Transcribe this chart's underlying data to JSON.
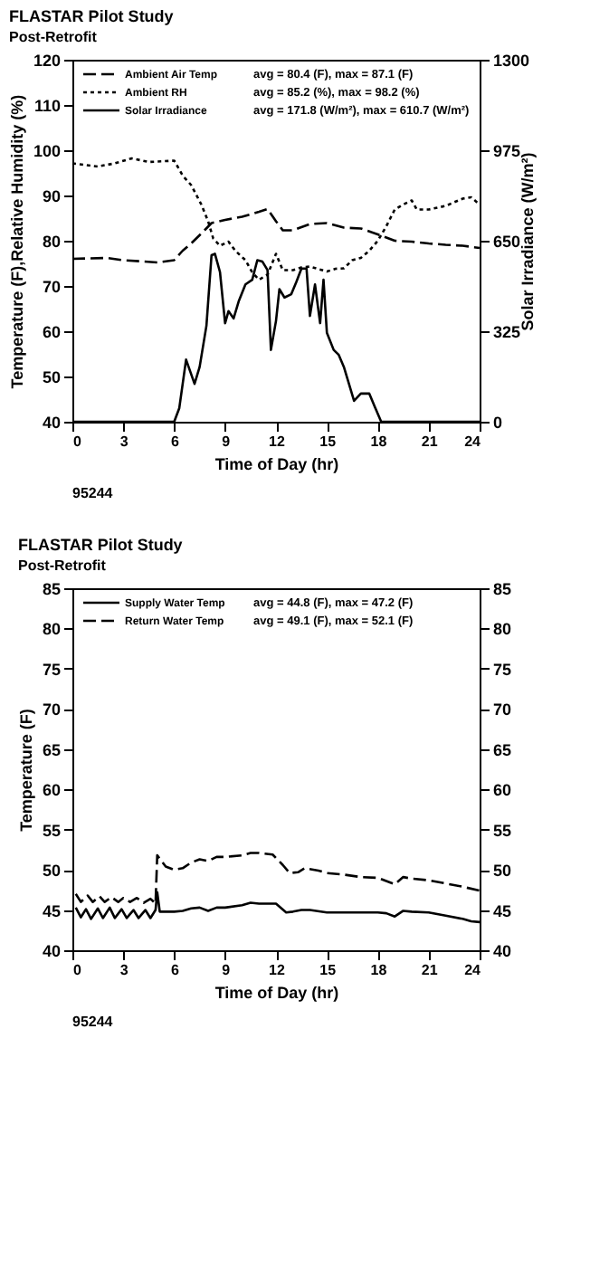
{
  "chart_data": [
    {
      "type": "line",
      "title": "FLASTAR Pilot Study",
      "subtitle": "Post-Retrofit",
      "xlabel": "Time of Day (hr)",
      "ylabel": "Temperature (F),Relative Humidity (%)",
      "y2label": "Solar Irradiance (W/m²)",
      "legend": "top left",
      "grid": false,
      "xlim": [
        0,
        24
      ],
      "xticks": [
        0,
        3,
        6,
        9,
        12,
        15,
        18,
        21,
        24
      ],
      "ylim": [
        40,
        120
      ],
      "yticks": [
        40,
        50,
        60,
        70,
        80,
        90,
        100,
        110,
        120
      ],
      "y2lim": [
        0,
        1300
      ],
      "y2ticks": [
        0,
        325,
        650,
        975,
        1300
      ],
      "annotations": [
        "avg = 80.4 (F), max = 87.1 (F)",
        "avg = 85.2 (%), max = 98.2 (%)",
        "avg = 171.8 (W/m²), max = 610.7 (W/m²)",
        "95244"
      ],
      "series": [
        {
          "name": "Ambient Air Temp",
          "color": "#000000",
          "line_style": "dashed",
          "x": [
            0,
            2,
            3,
            5,
            6,
            6.5,
            7,
            7.6,
            8.2,
            9,
            10,
            11,
            11.5,
            12,
            12.4,
            13,
            14,
            15,
            16,
            17,
            18,
            19,
            20,
            21,
            22,
            23,
            24
          ],
          "values": [
            76,
            76.2,
            75.7,
            75.2,
            75.7,
            77.8,
            79.4,
            81.6,
            83.9,
            84.6,
            85.3,
            86.4,
            87,
            84.3,
            82.3,
            82.3,
            83.7,
            83.9,
            82.9,
            82.7,
            81.4,
            80,
            79.8,
            79.4,
            79.1,
            78.9,
            78.4
          ]
        },
        {
          "name": "Ambient RH",
          "color": "#000000",
          "line_style": "dotted",
          "x": [
            0,
            1.5,
            2.5,
            3.5,
            4.5,
            6,
            6.5,
            7,
            7.6,
            8,
            8.3,
            8.7,
            9.2,
            9.6,
            10.2,
            10.6,
            11,
            11.5,
            12,
            12.4,
            13,
            13.5,
            14,
            15,
            15.5,
            16,
            16.5,
            17,
            17.5,
            18,
            18.5,
            19,
            19.5,
            20,
            20.3,
            21,
            22,
            23,
            23.5,
            24
          ],
          "values": [
            97.1,
            96.4,
            97.1,
            98.2,
            97.4,
            97.7,
            94.4,
            92.3,
            88,
            84.3,
            80.5,
            78.9,
            79.8,
            77.8,
            75.7,
            73,
            71.4,
            72.5,
            77.1,
            73.5,
            73.5,
            74.1,
            74.3,
            73.2,
            73.8,
            73.9,
            75.7,
            76.2,
            77.8,
            80,
            83.2,
            86.9,
            88,
            88.9,
            86.9,
            86.9,
            87.7,
            89.3,
            89.6,
            88
          ]
        },
        {
          "name": "Solar Irradiance",
          "color": "#000000",
          "line_style": "solid",
          "axis": "y2",
          "x": [
            0,
            6,
            6.3,
            6.7,
            7.2,
            7.5,
            7.9,
            8.2,
            8.4,
            8.7,
            9,
            9.2,
            9.5,
            9.8,
            10.2,
            10.6,
            10.9,
            11.2,
            11.5,
            11.7,
            12,
            12.2,
            12.5,
            12.9,
            13.2,
            13.5,
            13.8,
            14,
            14.3,
            14.6,
            14.8,
            15,
            15.4,
            15.7,
            16,
            16.3,
            16.6,
            17,
            17.5,
            17.8,
            18.2,
            24
          ],
          "values": [
            0,
            0,
            49,
            223,
            136,
            197,
            345,
            598,
            603,
            537,
            354,
            397,
            371,
            432,
            493,
            510,
            580,
            575,
            545,
            258,
            362,
            476,
            446,
            458,
            502,
            550,
            550,
            380,
            493,
            354,
            510,
            319,
            258,
            240,
            197,
            136,
            75,
            101,
            101,
            57,
            0,
            0
          ]
        }
      ]
    },
    {
      "type": "line",
      "title": "FLASTAR Pilot Study",
      "subtitle": "Post-Retrofit",
      "xlabel": "Time of Day (hr)",
      "ylabel": "Temperature (F)",
      "legend": "top left",
      "grid": false,
      "xlim": [
        0,
        24
      ],
      "xticks": [
        0,
        3,
        6,
        9,
        12,
        15,
        18,
        21,
        24
      ],
      "ylim": [
        40,
        85
      ],
      "yticks": [
        40,
        45,
        50,
        55,
        60,
        65,
        70,
        75,
        80,
        85
      ],
      "y2lim": [
        40,
        85
      ],
      "y2ticks": [
        40,
        45,
        50,
        55,
        60,
        65,
        70,
        75,
        80,
        85
      ],
      "annotations": [
        "avg = 44.8 (F), max = 47.2 (F)",
        "avg = 49.1 (F), max = 52.1 (F)",
        "95244"
      ],
      "series": [
        {
          "name": "Supply Water Temp",
          "color": "#000000",
          "line_style": "solid",
          "x": [
            0.2,
            0.5,
            0.8,
            1.1,
            1.5,
            1.8,
            2.2,
            2.5,
            2.9,
            3.2,
            3.6,
            3.9,
            4.3,
            4.6,
            4.9,
            5.0,
            5.15,
            6,
            6.5,
            7,
            7.5,
            8,
            8.5,
            9,
            10,
            10.5,
            11,
            12,
            12.6,
            13,
            13.5,
            14,
            15,
            18,
            18.5,
            19,
            19.5,
            20,
            21,
            22,
            23,
            23.5,
            24
          ],
          "values": [
            45.3,
            44.1,
            45.1,
            43.9,
            45.2,
            44,
            45.3,
            44,
            45.1,
            44,
            45,
            44,
            45,
            44,
            45,
            47.2,
            44.8,
            44.8,
            44.9,
            45.2,
            45.3,
            44.9,
            45.3,
            45.3,
            45.6,
            45.9,
            45.8,
            45.8,
            44.7,
            44.8,
            45,
            45,
            44.7,
            44.7,
            44.6,
            44.2,
            44.9,
            44.8,
            44.7,
            44.3,
            43.9,
            43.6,
            43.5
          ]
        },
        {
          "name": "Return Water Temp",
          "color": "#000000",
          "line_style": "dashed",
          "x": [
            0.2,
            0.5,
            0.9,
            1.2,
            1.6,
            1.9,
            2.3,
            2.7,
            3.0,
            3.4,
            3.8,
            4.2,
            4.6,
            4.9,
            5.0,
            5.5,
            6,
            6.5,
            7,
            7.5,
            8,
            8.5,
            9,
            10,
            10.5,
            11,
            11.8,
            12.4,
            12.8,
            13.3,
            13.7,
            14.5,
            15,
            16,
            17,
            18,
            18.5,
            19,
            19.5,
            20,
            21,
            22,
            23,
            24
          ],
          "values": [
            47,
            46,
            46.8,
            46,
            46.7,
            46,
            46.6,
            46,
            46.5,
            46,
            46.5,
            45.9,
            46.4,
            45.8,
            51.8,
            50.4,
            50,
            50.2,
            50.9,
            51.3,
            51.1,
            51.6,
            51.6,
            51.8,
            52.1,
            52.1,
            51.9,
            50.6,
            49.6,
            49.7,
            50.2,
            49.9,
            49.6,
            49.4,
            49.1,
            49,
            48.6,
            48.2,
            49.1,
            48.9,
            48.7,
            48.3,
            47.9,
            47.4
          ]
        }
      ]
    }
  ]
}
